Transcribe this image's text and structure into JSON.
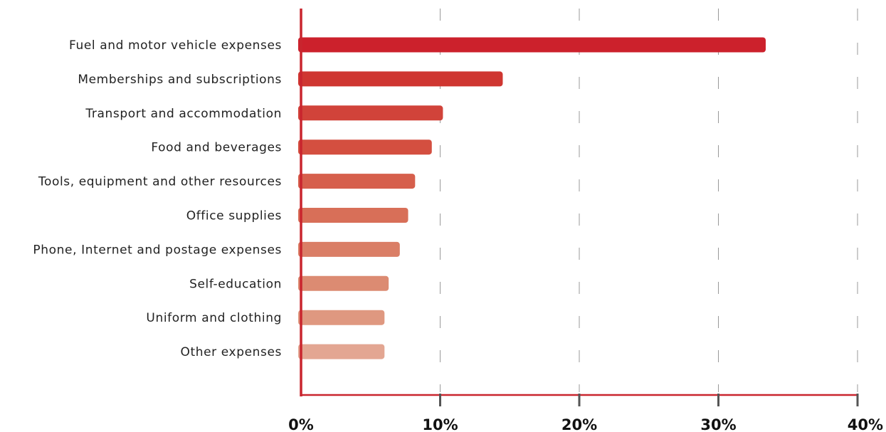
{
  "chart_data": {
    "type": "bar",
    "orientation": "horizontal",
    "title": "",
    "xlabel": "",
    "ylabel": "",
    "categories": [
      "Fuel and motor vehicle expenses",
      "Memberships and subscriptions",
      "Transport and accommodation",
      "Food and beverages",
      "Tools, equipment and other resources",
      "Office supplies",
      "Phone, Internet and postage expenses",
      "Self-education",
      "Uniform and clothing",
      "Other expenses"
    ],
    "values": [
      33.4,
      14.5,
      10.2,
      9.4,
      8.2,
      7.7,
      7.1,
      6.3,
      6.0,
      6.0
    ],
    "xlim": [
      0,
      40
    ],
    "x_ticks": [
      0,
      10,
      20,
      30,
      40
    ],
    "x_tick_labels": [
      "0%",
      "10%",
      "20%",
      "30%",
      "40%"
    ],
    "grid": "vertical dashed",
    "legend": "none",
    "bar_colors": [
      "#cc212c",
      "#cf3631",
      "#d1433a",
      "#d44f40",
      "#d65f4c",
      "#d86f58",
      "#da7e66",
      "#dc8b72",
      "#df9880",
      "#e3a692"
    ],
    "axis_color": "#c9252e",
    "grid_color": "#999999"
  }
}
